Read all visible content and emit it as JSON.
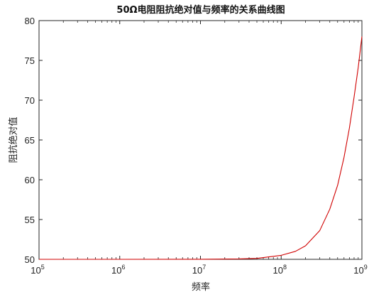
{
  "chart_data": {
    "type": "line",
    "title": "50Ω电阻阻抗绝对值与频率的关系曲线图",
    "xlabel": "频率",
    "ylabel": "阻抗绝对值",
    "xscale": "log",
    "xlim": [
      100000,
      1000000000
    ],
    "ylim": [
      50,
      80
    ],
    "x_ticks": [
      {
        "base": "10",
        "exp": "5",
        "value": 100000
      },
      {
        "base": "10",
        "exp": "6",
        "value": 1000000
      },
      {
        "base": "10",
        "exp": "7",
        "value": 10000000
      },
      {
        "base": "10",
        "exp": "8",
        "value": 100000000
      },
      {
        "base": "10",
        "exp": "9",
        "value": 1000000000
      }
    ],
    "y_ticks": [
      "50",
      "55",
      "60",
      "65",
      "70",
      "75",
      "80"
    ],
    "grid": false,
    "series": [
      {
        "color": "#d00000",
        "x": [
          100000,
          1000000,
          10000000,
          30000000,
          50000000,
          100000000,
          150000000,
          200000000,
          300000000,
          400000000,
          500000000,
          600000000,
          700000000,
          800000000,
          900000000,
          1000000000
        ],
        "y": [
          50,
          50,
          50.01,
          50.05,
          50.12,
          50.5,
          51.0,
          51.7,
          53.6,
          56.3,
          59.3,
          62.8,
          66.5,
          70.4,
          74.1,
          78
        ]
      }
    ]
  }
}
